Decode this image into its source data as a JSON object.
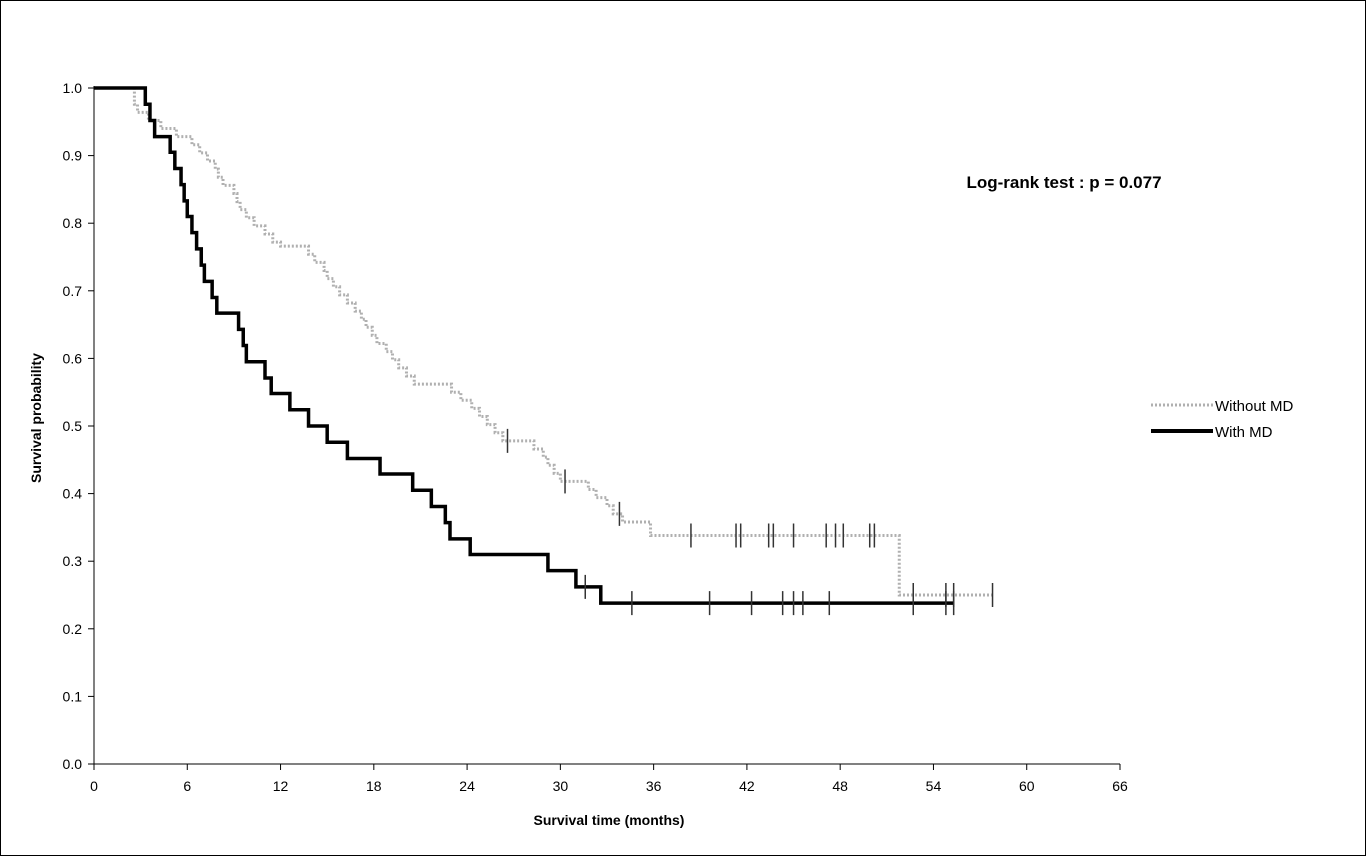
{
  "chart_data": {
    "type": "line",
    "step": true,
    "xlabel": "Survival time (months)",
    "ylabel": "Survival probability",
    "xlim": [
      0,
      66
    ],
    "ylim": [
      0,
      1
    ],
    "x_ticks": [
      "0",
      "6",
      "12",
      "18",
      "24",
      "30",
      "36",
      "42",
      "48",
      "54",
      "60",
      "66"
    ],
    "y_ticks": [
      "0.0",
      "0.1",
      "0.2",
      "0.3",
      "0.4",
      "0.5",
      "0.6",
      "0.7",
      "0.8",
      "0.9",
      "1.0"
    ],
    "grid": false,
    "legend_position": "right",
    "annotation": "Log-rank test : p = 0.077",
    "series": [
      {
        "name": "Without MD",
        "color": "#b0b0b0",
        "style": "dotted",
        "steps": [
          [
            0,
            1.0
          ],
          [
            2.6,
            0.976
          ],
          [
            2.8,
            0.964
          ],
          [
            3.5,
            0.952
          ],
          [
            4.3,
            0.94
          ],
          [
            5.3,
            0.928
          ],
          [
            6.3,
            0.916
          ],
          [
            6.8,
            0.904
          ],
          [
            7.3,
            0.892
          ],
          [
            7.8,
            0.88
          ],
          [
            8.0,
            0.868
          ],
          [
            8.3,
            0.856
          ],
          [
            9.0,
            0.844
          ],
          [
            9.2,
            0.832
          ],
          [
            9.4,
            0.82
          ],
          [
            9.8,
            0.808
          ],
          [
            10.3,
            0.796
          ],
          [
            11.0,
            0.784
          ],
          [
            11.5,
            0.772
          ],
          [
            12.0,
            0.766
          ],
          [
            13.8,
            0.754
          ],
          [
            14.2,
            0.742
          ],
          [
            14.8,
            0.73
          ],
          [
            15.0,
            0.718
          ],
          [
            15.4,
            0.706
          ],
          [
            15.8,
            0.694
          ],
          [
            16.3,
            0.682
          ],
          [
            16.8,
            0.67
          ],
          [
            17.2,
            0.658
          ],
          [
            17.5,
            0.646
          ],
          [
            17.9,
            0.634
          ],
          [
            18.2,
            0.622
          ],
          [
            18.8,
            0.61
          ],
          [
            19.2,
            0.598
          ],
          [
            19.6,
            0.586
          ],
          [
            20.1,
            0.574
          ],
          [
            20.6,
            0.562
          ],
          [
            23.0,
            0.55
          ],
          [
            23.6,
            0.538
          ],
          [
            24.3,
            0.526
          ],
          [
            24.8,
            0.514
          ],
          [
            25.3,
            0.502
          ],
          [
            25.8,
            0.49
          ],
          [
            26.3,
            0.478
          ],
          [
            28.3,
            0.466
          ],
          [
            28.9,
            0.454
          ],
          [
            29.2,
            0.442
          ],
          [
            29.6,
            0.43
          ],
          [
            30.0,
            0.418
          ],
          [
            31.8,
            0.406
          ],
          [
            32.3,
            0.394
          ],
          [
            33.0,
            0.382
          ],
          [
            33.4,
            0.37
          ],
          [
            34.0,
            0.358
          ],
          [
            35.8,
            0.338
          ],
          [
            51.8,
            0.25
          ]
        ],
        "end_x": 57.8,
        "censored": [
          26.6,
          30.3,
          33.8,
          38.4,
          41.3,
          41.6,
          43.4,
          43.7,
          45.0,
          47.1,
          47.7,
          48.2,
          49.9,
          50.2,
          52.7,
          54.8,
          55.3,
          57.8
        ]
      },
      {
        "name": "With MD",
        "color": "#000000",
        "style": "solid",
        "steps": [
          [
            0,
            1.0
          ],
          [
            3.3,
            0.976
          ],
          [
            3.6,
            0.952
          ],
          [
            3.9,
            0.928
          ],
          [
            4.9,
            0.905
          ],
          [
            5.2,
            0.881
          ],
          [
            5.6,
            0.857
          ],
          [
            5.8,
            0.833
          ],
          [
            6.0,
            0.81
          ],
          [
            6.3,
            0.786
          ],
          [
            6.6,
            0.762
          ],
          [
            6.9,
            0.738
          ],
          [
            7.1,
            0.714
          ],
          [
            7.6,
            0.69
          ],
          [
            7.9,
            0.667
          ],
          [
            9.3,
            0.643
          ],
          [
            9.6,
            0.619
          ],
          [
            9.8,
            0.595
          ],
          [
            11.0,
            0.571
          ],
          [
            11.4,
            0.548
          ],
          [
            12.6,
            0.524
          ],
          [
            13.8,
            0.5
          ],
          [
            15.0,
            0.476
          ],
          [
            16.3,
            0.452
          ],
          [
            18.4,
            0.429
          ],
          [
            20.5,
            0.405
          ],
          [
            21.7,
            0.381
          ],
          [
            22.6,
            0.357
          ],
          [
            22.9,
            0.333
          ],
          [
            24.2,
            0.31
          ],
          [
            29.2,
            0.286
          ],
          [
            31.0,
            0.262
          ],
          [
            32.6,
            0.238
          ]
        ],
        "end_x": 55.3,
        "censored": [
          31.6,
          34.6,
          39.6,
          42.3,
          44.3,
          45.0,
          45.6,
          47.3,
          52.7,
          54.8,
          55.3
        ]
      }
    ]
  }
}
